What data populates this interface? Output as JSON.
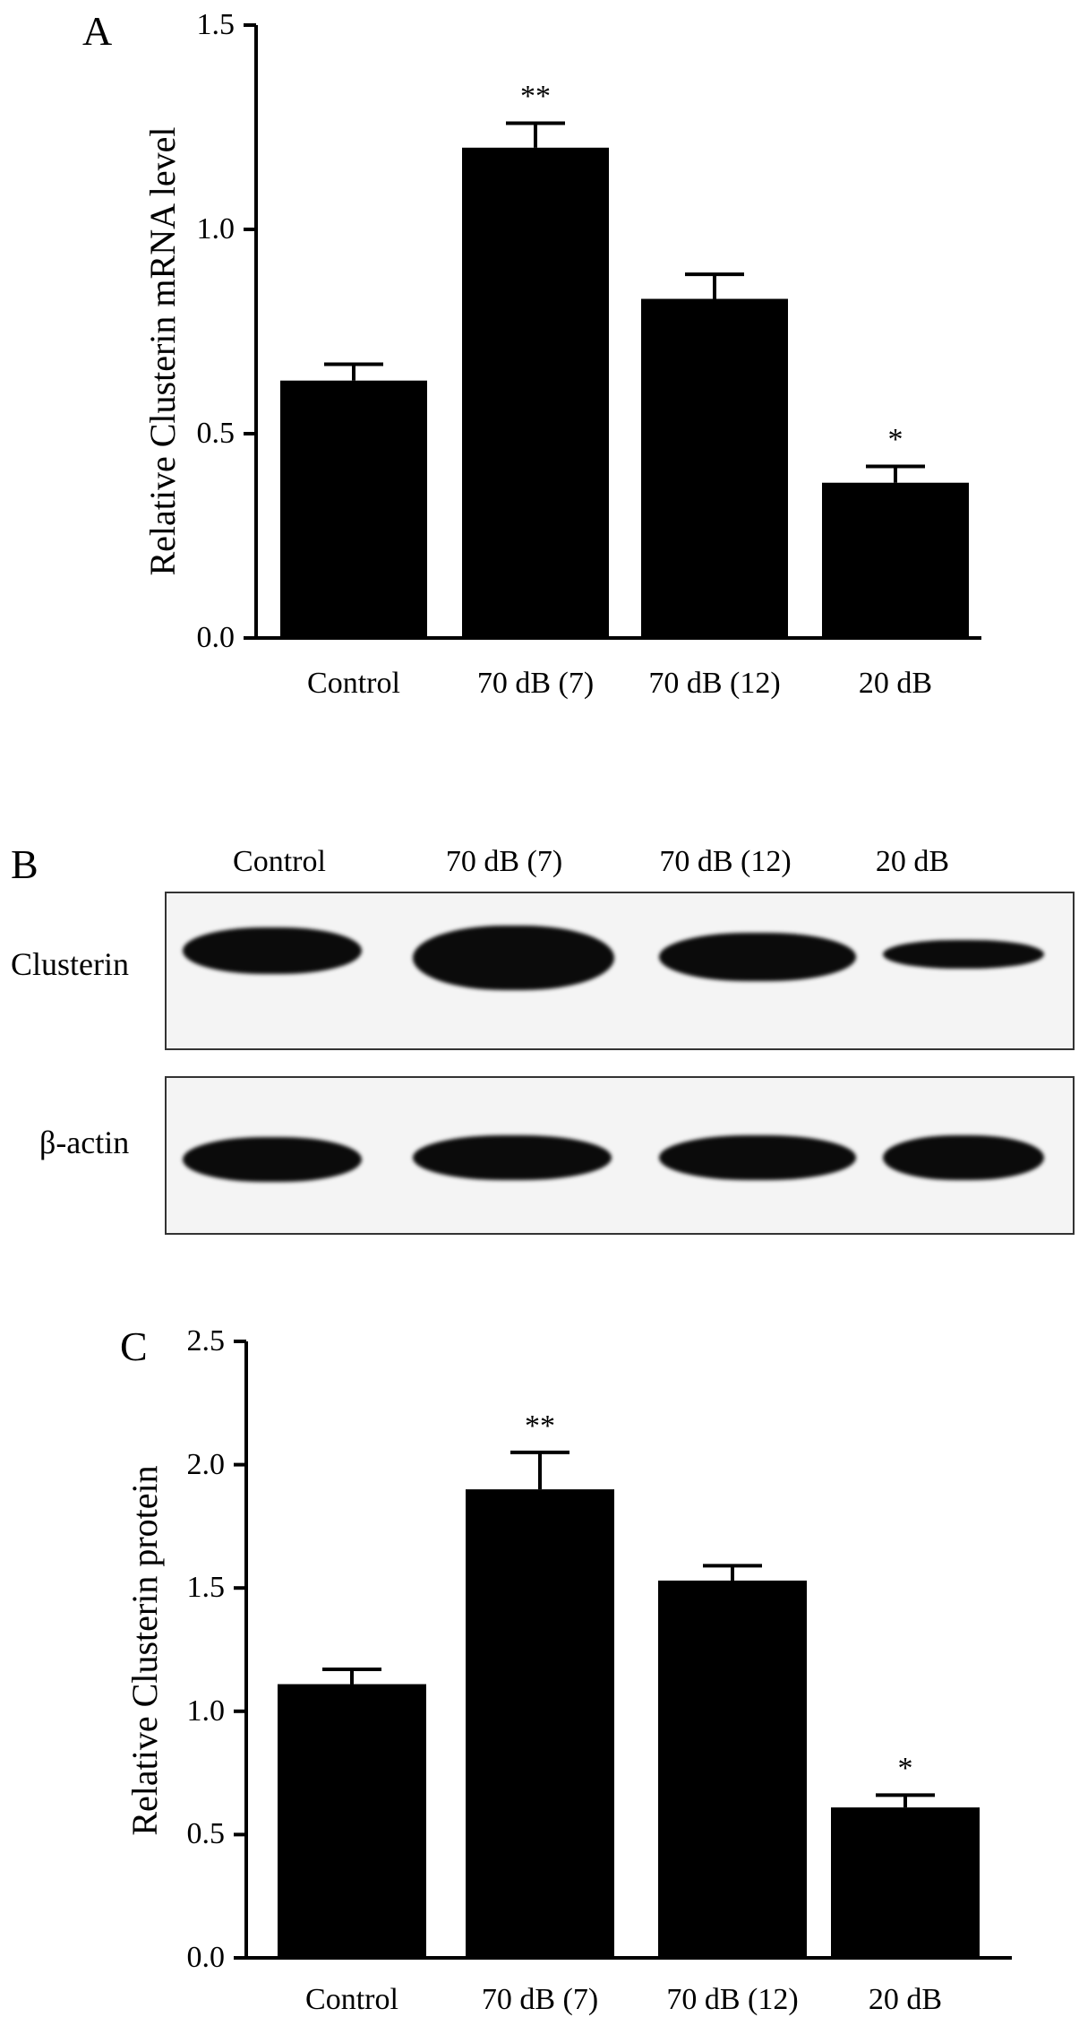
{
  "panels": {
    "a_label": "A",
    "b_label": "B",
    "c_label": "C"
  },
  "chart_data": [
    {
      "type": "bar",
      "panel": "A",
      "categories": [
        "Control",
        "70 dB (7)",
        "70 dB (12)",
        "20 dB"
      ],
      "values": [
        0.63,
        1.2,
        0.83,
        0.38
      ],
      "errors": [
        0.04,
        0.06,
        0.06,
        0.04
      ],
      "significance": [
        "",
        "**",
        "",
        "*"
      ],
      "ylabel": "Relative Clusterin mRNA level",
      "ylim": [
        0,
        1.5
      ],
      "yticks": [
        "0.0",
        "0.5",
        "1.0",
        "1.5"
      ],
      "bar_color": "#000000"
    },
    {
      "type": "bar",
      "panel": "C",
      "categories": [
        "Control",
        "70 dB (7)",
        "70 dB (12)",
        "20 dB"
      ],
      "values": [
        1.11,
        1.9,
        1.53,
        0.61
      ],
      "errors": [
        0.06,
        0.15,
        0.06,
        0.05
      ],
      "significance": [
        "",
        "**",
        "",
        "*"
      ],
      "ylabel": "Relative Clusterin protein",
      "ylim": [
        0,
        2.5
      ],
      "yticks": [
        "0.0",
        "0.5",
        "1.0",
        "1.5",
        "2.0",
        "2.5"
      ],
      "bar_color": "#000000"
    }
  ],
  "blot": {
    "columns": [
      "Control",
      "70 dB (7)",
      "70 dB (12)",
      "20 dB"
    ],
    "rows": [
      {
        "label": "Clusterin",
        "intensity": [
          0.63,
          1.0,
          0.83,
          0.45
        ]
      },
      {
        "label": "β-actin",
        "intensity": [
          0.8,
          0.8,
          0.8,
          0.8
        ]
      }
    ]
  }
}
